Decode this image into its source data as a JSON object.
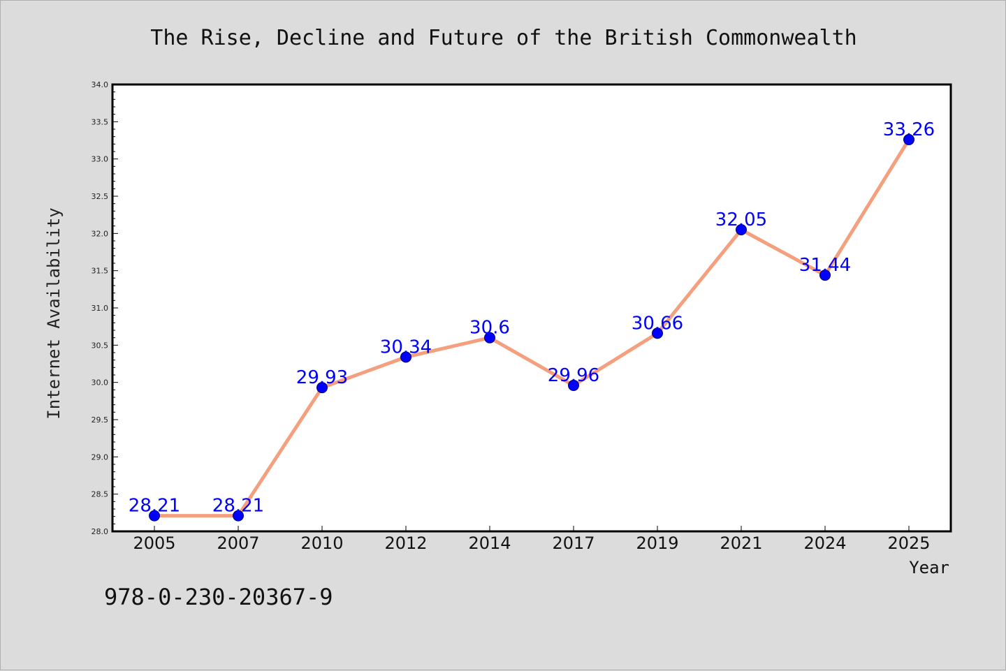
{
  "chart_data": {
    "type": "line",
    "title": "The Rise, Decline and Future of the British Commonwealth",
    "xlabel": "Year",
    "ylabel": "Internet Availability",
    "categories": [
      "2005",
      "2007",
      "2010",
      "2012",
      "2014",
      "2017",
      "2019",
      "2021",
      "2024",
      "2025"
    ],
    "series": [
      {
        "values": [
          28.21,
          28.21,
          29.93,
          30.34,
          30.6,
          29.96,
          30.66,
          32.05,
          31.44,
          33.26
        ],
        "labels": [
          "28.21",
          "28.21",
          "29.93",
          "30.34",
          "30.6",
          "29.96",
          "30.66",
          "32.05",
          "31.44",
          "33.26"
        ],
        "line_color": "#f4a07f",
        "marker_color": "#0000ff"
      }
    ],
    "ylim": [
      28.0,
      34.0
    ],
    "yticks": [
      "28.0",
      "28.5",
      "29.0",
      "29.5",
      "30.0",
      "30.5",
      "31.0",
      "31.5",
      "32.0",
      "32.5",
      "33.0",
      "33.5",
      "34.0"
    ],
    "grid": false,
    "legend": "none"
  },
  "annotation": {
    "isbn": "978-0-230-20367-9"
  }
}
